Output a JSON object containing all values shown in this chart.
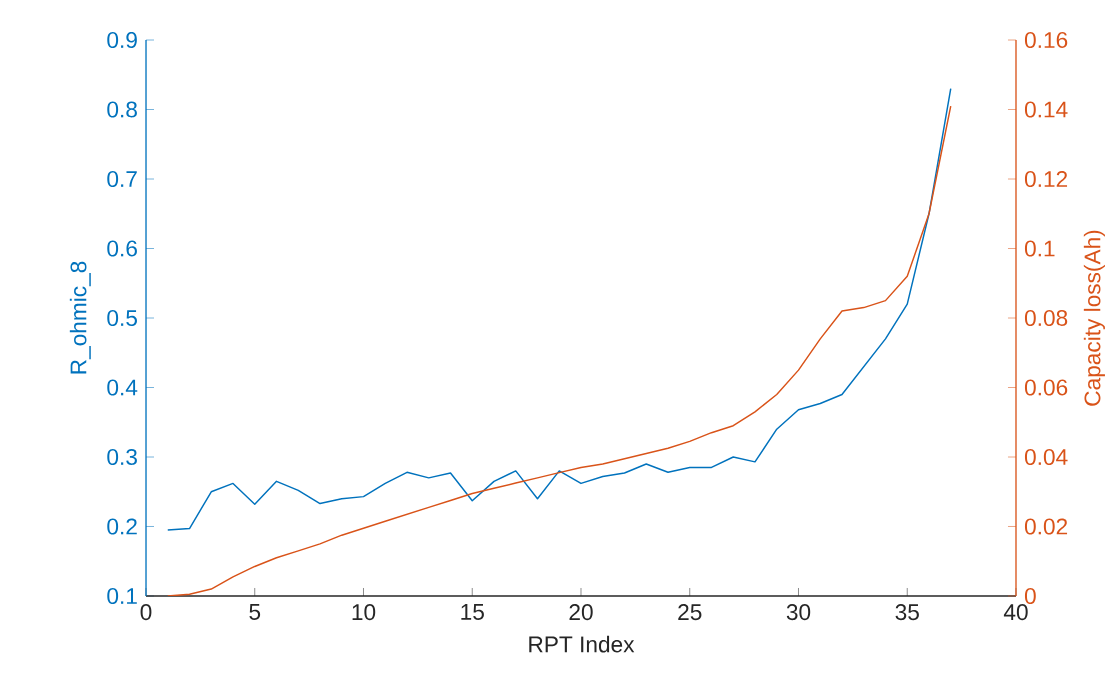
{
  "chart_data": {
    "type": "line",
    "xlabel": "RPT Index",
    "ylabel": "R_ohmic_8",
    "y2label": "Capacity loss(Ah)",
    "x": [
      1,
      2,
      3,
      4,
      5,
      6,
      7,
      8,
      9,
      10,
      11,
      12,
      13,
      14,
      15,
      16,
      17,
      18,
      19,
      20,
      21,
      22,
      23,
      24,
      25,
      26,
      27,
      28,
      29,
      30,
      31,
      32,
      33,
      34,
      35,
      36,
      37
    ],
    "series": [
      {
        "color": "#0072bd",
        "values": [
          0.195,
          0.197,
          0.25,
          0.262,
          0.232,
          0.265,
          0.252,
          0.233,
          0.24,
          0.243,
          0.262,
          0.278,
          0.27,
          0.277,
          0.237,
          0.265,
          0.28,
          0.24,
          0.28,
          0.262,
          0.272,
          0.277,
          0.29,
          0.278,
          0.285,
          0.285,
          0.3,
          0.293,
          0.34,
          0.368,
          0.377,
          0.39,
          0.43,
          0.47,
          0.52,
          0.65,
          0.83
        ]
      },
      {
        "color": "#d95319",
        "axis": "y2",
        "values": [
          0,
          0.0005,
          0.002,
          0.0055,
          0.0085,
          0.011,
          0.013,
          0.015,
          0.0175,
          0.0195,
          0.0215,
          0.0235,
          0.0255,
          0.0275,
          0.0295,
          0.031,
          0.0325,
          0.034,
          0.0355,
          0.037,
          0.038,
          0.0395,
          0.041,
          0.0425,
          0.0445,
          0.047,
          0.049,
          0.053,
          0.058,
          0.065,
          0.074,
          0.082,
          0.083,
          0.085,
          0.092,
          0.11,
          0.141
        ]
      }
    ],
    "xlim": [
      0,
      40
    ],
    "xticks": [
      0,
      5,
      10,
      15,
      20,
      25,
      30,
      35,
      40
    ],
    "ylim": [
      0.1,
      0.9
    ],
    "yticks": [
      0.1,
      0.2,
      0.3,
      0.4,
      0.5,
      0.6,
      0.7,
      0.8,
      0.9
    ],
    "y2lim": [
      0,
      0.16
    ],
    "y2ticks": [
      0,
      0.02,
      0.04,
      0.06,
      0.08,
      0.1,
      0.12,
      0.14,
      0.16
    ]
  }
}
